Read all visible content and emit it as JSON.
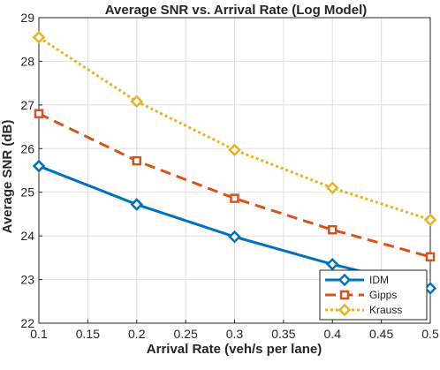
{
  "chart_data": {
    "type": "line",
    "title": "Average SNR vs. Arrival Rate (Log Model)",
    "xlabel": "Arrival Rate (veh/s per lane)",
    "ylabel": "Average SNR (dB)",
    "x": [
      0.1,
      0.2,
      0.3,
      0.4,
      0.5
    ],
    "xlim": [
      0.1,
      0.5
    ],
    "ylim": [
      22,
      29
    ],
    "xticks": [
      "0.1",
      "0.15",
      "0.2",
      "0.25",
      "0.3",
      "0.35",
      "0.4",
      "0.45",
      "0.5"
    ],
    "yticks": [
      "22",
      "23",
      "24",
      "25",
      "26",
      "27",
      "28",
      "29"
    ],
    "grid": true,
    "legend_position": "bottom-right",
    "series": [
      {
        "name": "IDM",
        "values": [
          25.6,
          24.72,
          23.98,
          23.35,
          22.8
        ],
        "color": "#0072BD",
        "line_style": "solid",
        "marker": "diamond"
      },
      {
        "name": "Gipps",
        "values": [
          26.8,
          25.72,
          24.86,
          24.14,
          23.52
        ],
        "color": "#D95319",
        "line_style": "dashed",
        "marker": "square"
      },
      {
        "name": "Krauss",
        "values": [
          28.55,
          27.08,
          25.97,
          25.1,
          24.37
        ],
        "color": "#EDB120",
        "line_style": "dotted",
        "marker": "diamond"
      }
    ]
  }
}
